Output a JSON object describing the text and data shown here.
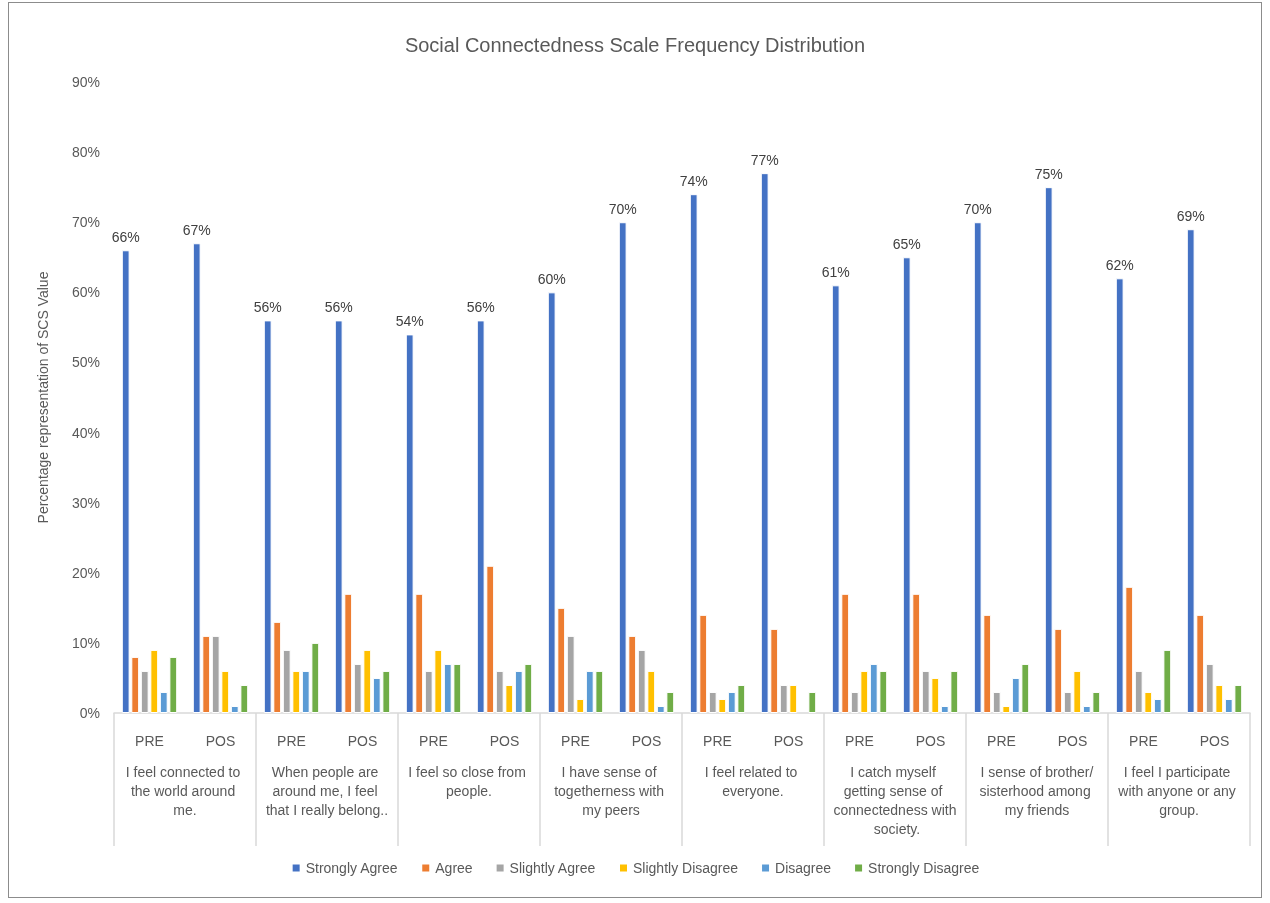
{
  "chart_data": {
    "type": "bar",
    "title": "Social Connectedness Scale Frequency Distribution",
    "ylabel": "Percentage representation of SCS Value",
    "categories": [
      "PRE",
      "POS",
      "PRE",
      "POS",
      "PRE",
      "POS",
      "PRE",
      "POS",
      "PRE",
      "POS",
      "PRE",
      "POS",
      "PRE",
      "POS",
      "PRE",
      "POS"
    ],
    "annotations": [
      "I feel connected to the world around me.",
      "When people are around me, I feel that I really belong..",
      "I feel so close from people.",
      "I have sense of togetherness with my peers",
      "I feel related to everyone.",
      "I catch myself getting sense of connectedness with society.",
      "I sense of brother/sisterhood among my friends",
      "I feel I participate with anyone or any group."
    ],
    "ylim": [
      0,
      90
    ],
    "yticks": [
      {
        "value": 0,
        "label": "0%"
      },
      {
        "value": 10,
        "label": "10%"
      },
      {
        "value": 20,
        "label": "20%"
      },
      {
        "value": 30,
        "label": "30%"
      },
      {
        "value": 40,
        "label": "40%"
      },
      {
        "value": 50,
        "label": "50%"
      },
      {
        "value": 60,
        "label": "60%"
      },
      {
        "value": 70,
        "label": "70%"
      },
      {
        "value": 80,
        "label": "80%"
      },
      {
        "value": 90,
        "label": "90%"
      }
    ],
    "grid": false,
    "legend": "bottom",
    "series": [
      {
        "name": "Strongly Agree",
        "color": "#4472c4",
        "values": [
          66,
          67,
          56,
          56,
          54,
          56,
          60,
          70,
          74,
          77,
          61,
          65,
          70,
          75,
          62,
          69
        ],
        "value_labels": [
          "66%",
          "67%",
          "56%",
          "56%",
          "54%",
          "56%",
          "60%",
          "70%",
          "74%",
          "77%",
          "61%",
          "65%",
          "70%",
          "75%",
          "62%",
          "69%"
        ]
      },
      {
        "name": "Agree",
        "color": "#ed7d31",
        "values": [
          8,
          11,
          13,
          17,
          17,
          21,
          15,
          11,
          14,
          12,
          17,
          17,
          14,
          12,
          18,
          14
        ]
      },
      {
        "name": "Slightly Agree",
        "color": "#a5a5a5",
        "values": [
          6,
          11,
          9,
          7,
          6,
          6,
          11,
          9,
          3,
          4,
          3,
          6,
          3,
          3,
          6,
          7
        ]
      },
      {
        "name": "Slightly Disagree",
        "color": "#ffc000",
        "values": [
          9,
          6,
          6,
          9,
          9,
          4,
          2,
          6,
          2,
          4,
          6,
          5,
          1,
          6,
          3,
          4
        ]
      },
      {
        "name": "Disagree",
        "color": "#5b9bd5",
        "values": [
          3,
          1,
          6,
          5,
          7,
          6,
          6,
          1,
          3,
          null,
          7,
          1,
          5,
          1,
          2,
          2
        ]
      },
      {
        "name": "Strongly Disagree",
        "color": "#70ad47",
        "values": [
          8,
          4,
          10,
          6,
          7,
          7,
          6,
          3,
          4,
          3,
          6,
          6,
          7,
          3,
          9,
          4
        ]
      }
    ]
  }
}
